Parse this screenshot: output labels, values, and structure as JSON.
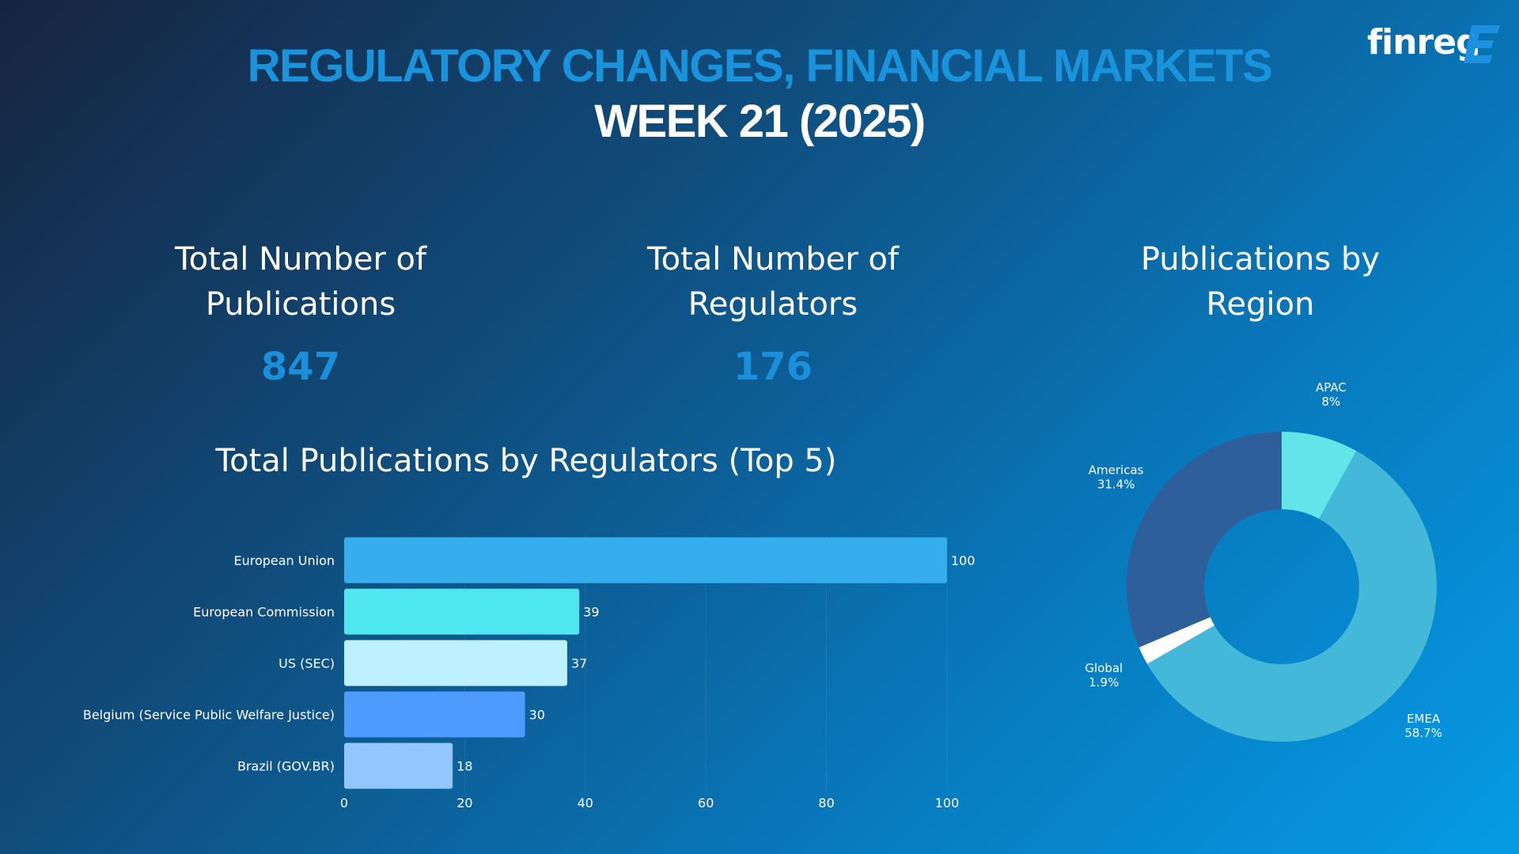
{
  "header": {
    "title": "REGULATORY CHANGES, FINANCIAL MARKETS",
    "subtitle": "WEEK 21 (2025)",
    "logo_text": "finreg"
  },
  "kpis": [
    {
      "label_line1": "Total Number of",
      "label_line2": "Publications",
      "value": "847"
    },
    {
      "label_line1": "Total Number of",
      "label_line2": "Regulators",
      "value": "176"
    }
  ],
  "region_panel": {
    "title_line1": "Publications by",
    "title_line2": "Region"
  },
  "colors": {
    "title_accent": "#1993dc",
    "kpi_value": "#1a8fdb"
  },
  "chart_data": [
    {
      "type": "bar",
      "orientation": "horizontal",
      "title": "Total Publications by Regulators (Top 5)",
      "categories": [
        "European Union",
        "European Commission",
        "US (SEC)",
        "Belgium (Service Public Welfare Justice)",
        "Brazil (GOV.BR)"
      ],
      "values": [
        100,
        39,
        37,
        30,
        18
      ],
      "bar_colors": [
        "#36aeee",
        "#4fe7ef",
        "#bdf1ff",
        "#4d9bff",
        "#93c5ff"
      ],
      "xlim": [
        0,
        100
      ],
      "xticks": [
        0,
        20,
        40,
        60,
        80,
        100
      ],
      "grid": true
    },
    {
      "type": "pie",
      "style": "donut",
      "title": "Publications by Region",
      "slices": [
        {
          "label": "APAC",
          "percent_label": "8%",
          "value": 8,
          "color": "#62e4e8"
        },
        {
          "label": "EMEA",
          "percent_label": "58.7%",
          "value": 58.7,
          "color": "#44b8d8"
        },
        {
          "label": "Global",
          "percent_label": "1.9%",
          "value": 1.9,
          "color": "#ffffff"
        },
        {
          "label": "Americas",
          "percent_label": "31.4%",
          "value": 31.4,
          "color": "#2e5f9a"
        }
      ]
    }
  ]
}
